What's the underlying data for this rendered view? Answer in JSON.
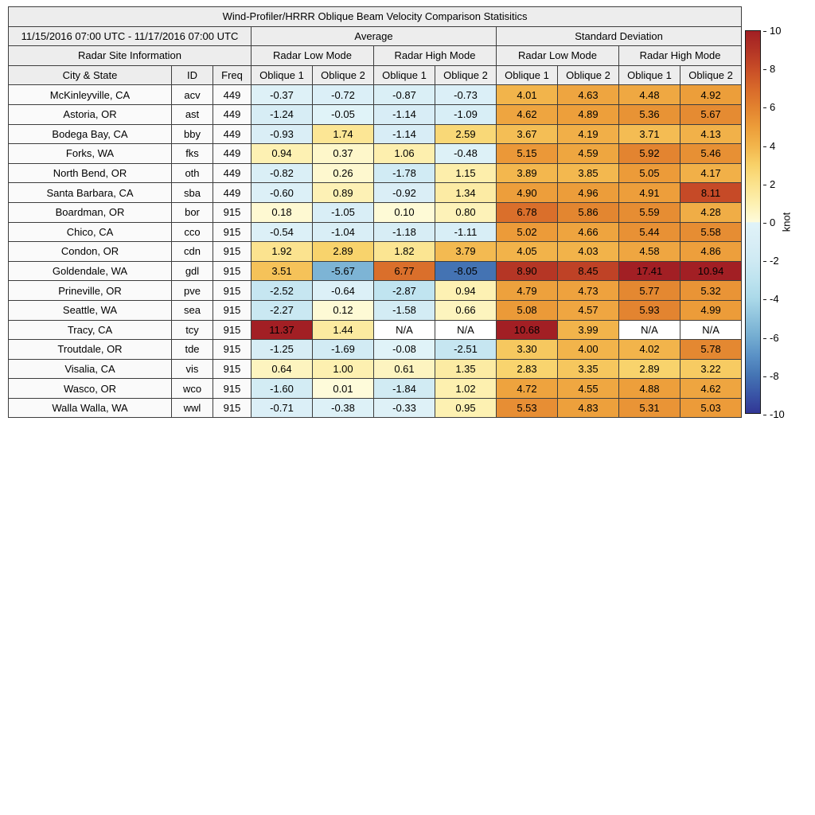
{
  "chart_data": {
    "type": "heatmap",
    "title": "Wind-Profiler/HRRR Oblique Beam Velocity Comparison Statisitics",
    "date_range": "11/15/2016 07:00 UTC - 11/17/2016 07:00 UTC",
    "headers": {
      "site_info": "Radar Site Information",
      "average": "Average",
      "std_dev": "Standard Deviation",
      "low_mode": "Radar Low Mode",
      "high_mode": "Radar High Mode",
      "city": "City & State",
      "id": "ID",
      "freq": "Freq",
      "oblique1": "Oblique 1",
      "oblique2": "Oblique 2"
    },
    "columns": [
      "City & State",
      "ID",
      "Freq",
      "Avg Low Oblique 1",
      "Avg Low Oblique 2",
      "Avg High Oblique 1",
      "Avg High Oblique 2",
      "Std Low Oblique 1",
      "Std Low Oblique 2",
      "Std High Oblique 1",
      "Std High Oblique 2"
    ],
    "rows": [
      {
        "city": "McKinleyville, CA",
        "id": "acv",
        "freq": "449",
        "values": [
          "-0.37",
          "-0.72",
          "-0.87",
          "-0.73",
          "4.01",
          "4.63",
          "4.48",
          "4.92"
        ]
      },
      {
        "city": "Astoria, OR",
        "id": "ast",
        "freq": "449",
        "values": [
          "-1.24",
          "-0.05",
          "-1.14",
          "-1.09",
          "4.62",
          "4.89",
          "5.36",
          "5.67"
        ]
      },
      {
        "city": "Bodega Bay, CA",
        "id": "bby",
        "freq": "449",
        "values": [
          "-0.93",
          "1.74",
          "-1.14",
          "2.59",
          "3.67",
          "4.19",
          "3.71",
          "4.13"
        ]
      },
      {
        "city": "Forks, WA",
        "id": "fks",
        "freq": "449",
        "values": [
          "0.94",
          "0.37",
          "1.06",
          "-0.48",
          "5.15",
          "4.59",
          "5.92",
          "5.46"
        ]
      },
      {
        "city": "North Bend, OR",
        "id": "oth",
        "freq": "449",
        "values": [
          "-0.82",
          "0.26",
          "-1.78",
          "1.15",
          "3.89",
          "3.85",
          "5.05",
          "4.17"
        ]
      },
      {
        "city": "Santa Barbara, CA",
        "id": "sba",
        "freq": "449",
        "values": [
          "-0.60",
          "0.89",
          "-0.92",
          "1.34",
          "4.90",
          "4.96",
          "4.91",
          "8.11"
        ]
      },
      {
        "city": "Boardman, OR",
        "id": "bor",
        "freq": "915",
        "values": [
          "0.18",
          "-1.05",
          "0.10",
          "0.80",
          "6.78",
          "5.86",
          "5.59",
          "4.28"
        ]
      },
      {
        "city": "Chico, CA",
        "id": "cco",
        "freq": "915",
        "values": [
          "-0.54",
          "-1.04",
          "-1.18",
          "-1.11",
          "5.02",
          "4.66",
          "5.44",
          "5.58"
        ]
      },
      {
        "city": "Condon, OR",
        "id": "cdn",
        "freq": "915",
        "values": [
          "1.92",
          "2.89",
          "1.82",
          "3.79",
          "4.05",
          "4.03",
          "4.58",
          "4.86"
        ]
      },
      {
        "city": "Goldendale, WA",
        "id": "gdl",
        "freq": "915",
        "values": [
          "3.51",
          "-5.67",
          "6.77",
          "-8.05",
          "8.90",
          "8.45",
          "17.41",
          "10.94"
        ]
      },
      {
        "city": "Prineville, OR",
        "id": "pve",
        "freq": "915",
        "values": [
          "-2.52",
          "-0.64",
          "-2.87",
          "0.94",
          "4.79",
          "4.73",
          "5.77",
          "5.32"
        ]
      },
      {
        "city": "Seattle, WA",
        "id": "sea",
        "freq": "915",
        "values": [
          "-2.27",
          "0.12",
          "-1.58",
          "0.66",
          "5.08",
          "4.57",
          "5.93",
          "4.99"
        ]
      },
      {
        "city": "Tracy, CA",
        "id": "tcy",
        "freq": "915",
        "values": [
          "11.37",
          "1.44",
          "N/A",
          "N/A",
          "10.68",
          "3.99",
          "N/A",
          "N/A"
        ]
      },
      {
        "city": "Troutdale, OR",
        "id": "tde",
        "freq": "915",
        "values": [
          "-1.25",
          "-1.69",
          "-0.08",
          "-2.51",
          "3.30",
          "4.00",
          "4.02",
          "5.78"
        ]
      },
      {
        "city": "Visalia, CA",
        "id": "vis",
        "freq": "915",
        "values": [
          "0.64",
          "1.00",
          "0.61",
          "1.35",
          "2.83",
          "3.35",
          "2.89",
          "3.22"
        ]
      },
      {
        "city": "Wasco, OR",
        "id": "wco",
        "freq": "915",
        "values": [
          "-1.60",
          "0.01",
          "-1.84",
          "1.02",
          "4.72",
          "4.55",
          "4.88",
          "4.62"
        ]
      },
      {
        "city": "Walla Walla, WA",
        "id": "wwl",
        "freq": "915",
        "values": [
          "-0.71",
          "-0.38",
          "-0.33",
          "0.95",
          "5.53",
          "4.83",
          "5.31",
          "5.03"
        ]
      }
    ],
    "value_range": [
      -10,
      10
    ],
    "colorbar": {
      "label": "knot",
      "ticks": [
        10,
        8,
        6,
        4,
        2,
        0,
        -2,
        -4,
        -6,
        -8,
        -10
      ],
      "na_color": "#ffffff",
      "colormap_stops": [
        {
          "value": -10,
          "color": "#313695"
        },
        {
          "value": -9,
          "color": "#3a56a7"
        },
        {
          "value": -8,
          "color": "#4575b4"
        },
        {
          "value": -7,
          "color": "#5a91c6"
        },
        {
          "value": -6,
          "color": "#74add1"
        },
        {
          "value": -5,
          "color": "#8fc3dd"
        },
        {
          "value": -4,
          "color": "#abd9e9"
        },
        {
          "value": -3,
          "color": "#bee3ef"
        },
        {
          "value": -2,
          "color": "#cfeaf3"
        },
        {
          "value": -1,
          "color": "#d9eef6"
        },
        {
          "value": -0.02,
          "color": "#e0f3f8"
        },
        {
          "value": 0,
          "color": "#fefbda"
        },
        {
          "value": 1,
          "color": "#fdf0b0"
        },
        {
          "value": 2,
          "color": "#fbe28c"
        },
        {
          "value": 3,
          "color": "#f8d168"
        },
        {
          "value": 4,
          "color": "#f2b44b"
        },
        {
          "value": 5,
          "color": "#ec9c39"
        },
        {
          "value": 6,
          "color": "#e2822f"
        },
        {
          "value": 7,
          "color": "#d8692a"
        },
        {
          "value": 8,
          "color": "#c84d27"
        },
        {
          "value": 9,
          "color": "#b33425"
        },
        {
          "value": 10,
          "color": "#a21f24"
        }
      ]
    }
  }
}
